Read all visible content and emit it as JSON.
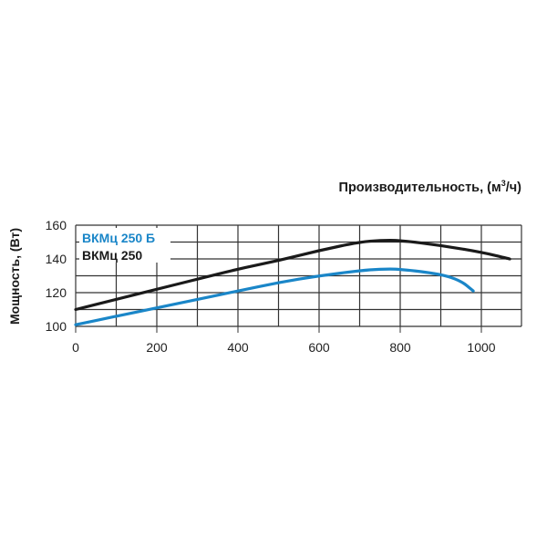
{
  "chart_data": {
    "type": "line",
    "title": "Производительность, (м³/ч)",
    "title_parts": {
      "main": "Производительность, (м",
      "sup": "3",
      "tail": "/ч)"
    },
    "xlabel": "Производительность, (м³/ч)",
    "ylabel": "Мощность, (Вт)",
    "xlim": [
      0,
      1100
    ],
    "ylim": [
      100,
      160
    ],
    "x_ticks": [
      0,
      200,
      400,
      600,
      800,
      1000
    ],
    "y_ticks": [
      100,
      120,
      140,
      160
    ],
    "grid": true,
    "legend_position": "upper-left",
    "series": [
      {
        "name": "ВКМц 250 Б",
        "color": "#1a86c8",
        "x": [
          0,
          100,
          200,
          300,
          400,
          500,
          600,
          700,
          750,
          800,
          900,
          950,
          980
        ],
        "values": [
          101,
          106,
          111,
          116,
          121,
          126,
          130,
          133,
          134,
          134,
          131,
          127,
          121
        ]
      },
      {
        "name": "ВКМц 250",
        "color": "#1a1a1a",
        "x": [
          0,
          100,
          200,
          300,
          400,
          500,
          600,
          700,
          750,
          800,
          900,
          1000,
          1070
        ],
        "values": [
          110,
          116,
          122,
          128,
          134,
          139,
          145,
          150,
          151,
          151,
          148,
          144,
          140
        ]
      }
    ]
  }
}
